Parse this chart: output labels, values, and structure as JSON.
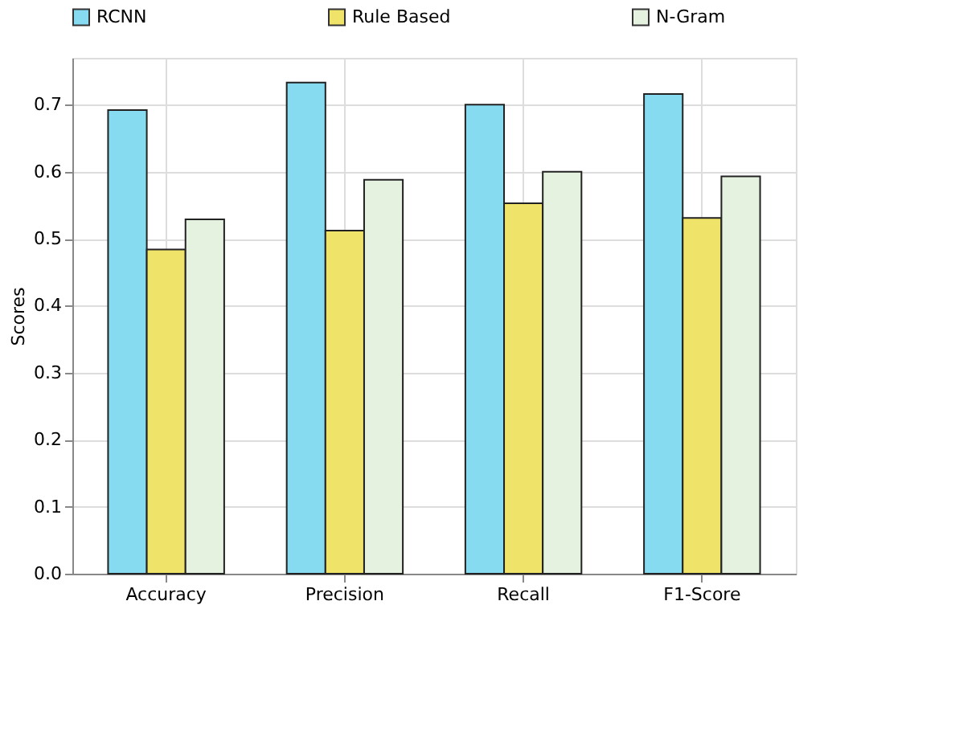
{
  "chart_data": {
    "type": "bar",
    "ylabel": "Scores",
    "categories": [
      "Accuracy",
      "Precision",
      "Recall",
      "F1-Score"
    ],
    "series": [
      {
        "name": "RCNN",
        "color": "#87dbf0",
        "values": [
          0.692,
          0.733,
          0.7,
          0.716
        ]
      },
      {
        "name": "Rule Based",
        "color": "#f0e36a",
        "values": [
          0.484,
          0.512,
          0.553,
          0.531
        ]
      },
      {
        "name": "N-Gram",
        "color": "#e6f2e0",
        "values": [
          0.529,
          0.588,
          0.6,
          0.593
        ]
      }
    ],
    "ylim": [
      0,
      0.77
    ],
    "yticks": [
      {
        "value": 0,
        "label": "0.0"
      },
      0.1,
      0.2,
      0.3,
      0.4,
      0.5,
      0.6,
      0.7
    ],
    "grid": true,
    "legend": "top"
  }
}
